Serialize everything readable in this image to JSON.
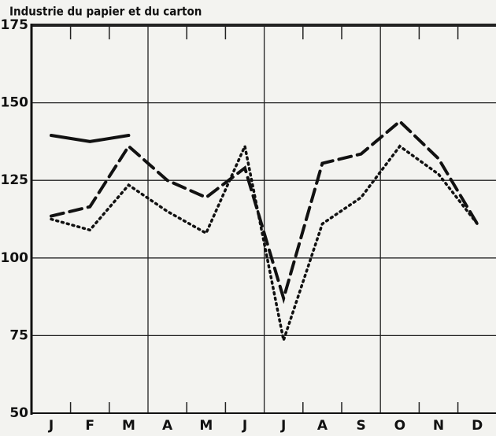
{
  "chart_data": {
    "type": "line",
    "title": "Industrie du papier et du carton",
    "categories": [
      "J",
      "F",
      "M",
      "A",
      "M",
      "J",
      "J",
      "A",
      "S",
      "O",
      "N",
      "D"
    ],
    "series": [
      {
        "color": "#111111",
        "style": "solid",
        "values": [
          139.5,
          137.5,
          139.5,
          null,
          null,
          null,
          null,
          null,
          null,
          null,
          null,
          null
        ]
      },
      {
        "color": "#111111",
        "style": "dashed",
        "values": [
          113.5,
          116.5,
          136,
          125,
          119.5,
          129,
          87,
          130.5,
          133.5,
          144,
          132,
          111
        ]
      },
      {
        "color": "#111111",
        "style": "dotted",
        "values": [
          112.5,
          109,
          123.5,
          115,
          108,
          136,
          73.5,
          111,
          119.5,
          136,
          127,
          111
        ]
      }
    ],
    "ylim": [
      50,
      175
    ],
    "yticks": [
      50,
      75,
      100,
      125,
      150,
      175
    ],
    "grid": true
  }
}
